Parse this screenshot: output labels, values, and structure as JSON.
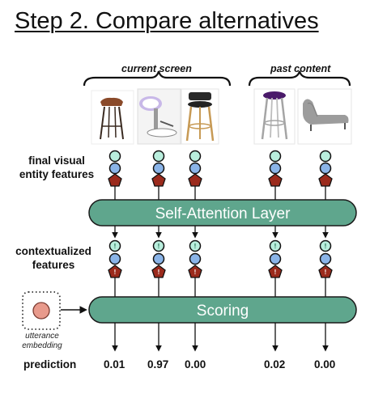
{
  "title": "Step 2. Compare alternatives",
  "groups": {
    "current": "current screen",
    "past": "past content"
  },
  "labels": {
    "final_features_1": "final visual",
    "final_features_2": "entity features",
    "contextualized_1": "contextualized",
    "contextualized_2": "features",
    "utterance_1": "utterance",
    "utterance_2": "embedding",
    "prediction": "prediction"
  },
  "layers": {
    "self_attention": "Self-Attention Layer",
    "scoring": "Scoring"
  },
  "images": [
    "bar-stool-wood-icon",
    "white-swivel-stool-icon",
    "wooden-swivel-stool-icon",
    "purple-chrome-stool-icon",
    "gray-chaise-lounge-icon"
  ],
  "predictions": [
    "0.01",
    "0.97",
    "0.00",
    "0.02",
    "0.00"
  ],
  "colors": {
    "layer_fill": "#5fa68d",
    "circle_top": "#b9eedd",
    "circle_mid": "#8ab4e8",
    "pentagon": "#9b2a1c",
    "utterance_dot": "#e89a8c",
    "alert_glyph": "!"
  }
}
